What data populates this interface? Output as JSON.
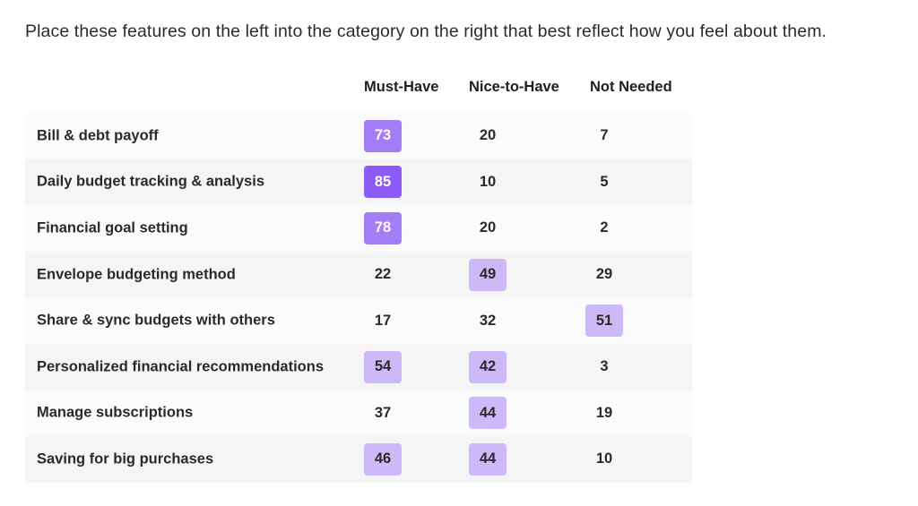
{
  "prompt": "Place these features on the left into the category on the right that best reflect how you feel about them.",
  "colors": {
    "strong": "#8a5cf5",
    "medium": "#a27df6",
    "light": "#cdb8f8",
    "text_dark": "#2a2a2a",
    "text_light": "#ffffff"
  },
  "chart_data": {
    "type": "table",
    "columns": [
      "Must-Have",
      "Nice-to-Have",
      "Not Needed"
    ],
    "rows": [
      {
        "label": "Bill & debt payoff",
        "values": [
          73,
          20,
          7
        ]
      },
      {
        "label": "Daily budget tracking & analysis",
        "values": [
          85,
          10,
          5
        ]
      },
      {
        "label": "Financial goal setting",
        "values": [
          78,
          20,
          2
        ]
      },
      {
        "label": "Envelope budgeting method",
        "values": [
          22,
          49,
          29
        ]
      },
      {
        "label": "Share & sync budgets with others",
        "values": [
          17,
          32,
          51
        ]
      },
      {
        "label": "Personalized financial recommendations",
        "values": [
          54,
          42,
          3
        ]
      },
      {
        "label": "Manage subscriptions",
        "values": [
          37,
          44,
          19
        ]
      },
      {
        "label": "Saving for big purchases",
        "values": [
          46,
          44,
          10
        ]
      }
    ]
  }
}
